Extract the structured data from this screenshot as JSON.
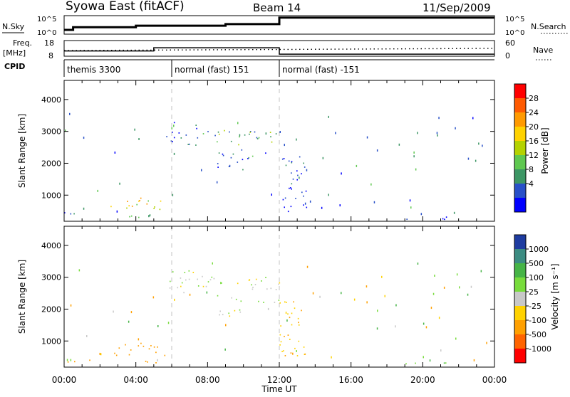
{
  "header": {
    "station": "Syowa East (fitACF)",
    "beam": "Beam 14",
    "date": "11/Sep/2009"
  },
  "top_panel": {
    "left_label": "N.Sky",
    "right_label": "N.Search",
    "left_ticks": [
      "10^5",
      "10^0"
    ],
    "right_ticks": [
      "10^5",
      "10^0"
    ],
    "nsky_steps": [
      {
        "x": 0.0,
        "v": 0.18
      },
      {
        "x": 0.5,
        "v": 0.35
      },
      {
        "x": 4.0,
        "v": 0.45
      },
      {
        "x": 9.0,
        "v": 0.55
      },
      {
        "x": 12.0,
        "v": 0.97
      },
      {
        "x": 24.0,
        "v": 0.97
      }
    ]
  },
  "freq_panel": {
    "left_label_1": "Freq.",
    "left_label_2": "[MHz]",
    "right_label": "Nave",
    "left_ticks": [
      "18",
      "8"
    ],
    "right_ticks": [
      "60",
      "0"
    ],
    "freq_steps": [
      {
        "x": 0.0,
        "v": 0.3
      },
      {
        "x": 5.0,
        "v": 0.55
      },
      {
        "x": 12.0,
        "v": 0.05
      },
      {
        "x": 24.0,
        "v": 0.05
      }
    ]
  },
  "cpid": {
    "label": "CPID",
    "segments": [
      {
        "start": 0,
        "end": 6,
        "name": "themis 3300"
      },
      {
        "start": 6,
        "end": 12,
        "name": "normal (fast) 151"
      },
      {
        "start": 12,
        "end": 24,
        "name": "normal (fast) -151"
      }
    ]
  },
  "power_panel": {
    "ylabel": "Slant Range [km]",
    "cbar_label": "Power [dB]",
    "cbar_ticks": [
      "28",
      "24",
      "20",
      "16",
      "12",
      "8",
      "4"
    ],
    "cbar_colors": [
      "#ff0000",
      "#ff5a00",
      "#ff9a00",
      "#ffd200",
      "#b4d200",
      "#5fc850",
      "#3c9664",
      "#2850c8",
      "#0000ff"
    ]
  },
  "velocity_panel": {
    "ylabel": "Slant Range [km]",
    "cbar_label": "Velocity [m s⁻¹]",
    "cbar_ticks": [
      "1000",
      "500",
      "100",
      "25",
      "-25",
      "-100",
      "-500",
      "-1000"
    ],
    "cbar_colors": [
      "#1e3ca0",
      "#3c8c82",
      "#46b446",
      "#78dc3c",
      "#c8c8c8",
      "#ffd200",
      "#ffa000",
      "#ff6400",
      "#ff0000"
    ]
  },
  "axes": {
    "xlabel": "Time UT",
    "xticks": [
      "00:00",
      "04:00",
      "08:00",
      "12:00",
      "16:00",
      "20:00",
      "00:00"
    ],
    "yticks": [
      "1000",
      "2000",
      "3000",
      "4000"
    ]
  },
  "chart_data": {
    "type": "heatmap",
    "title": "Syowa East (fitACF)",
    "subtitle": "Beam 14",
    "date": "11/Sep/2009",
    "xlabel": "Time UT",
    "ylabel": "Slant Range [km]",
    "xlim": [
      0,
      24
    ],
    "ylim": [
      180,
      4600
    ],
    "x_ticks": [
      0,
      4,
      8,
      12,
      16,
      20,
      24
    ],
    "y_ticks": [
      1000,
      2000,
      3000,
      4000
    ],
    "panels": [
      {
        "name": "Power [dB]",
        "scale_ticks": [
          4,
          8,
          12,
          16,
          20,
          24,
          28
        ]
      },
      {
        "name": "Velocity [m s-1]",
        "scale_ticks": [
          -1000,
          -500,
          -100,
          -25,
          25,
          100,
          500,
          1000
        ]
      }
    ],
    "regions": [
      {
        "t0": 0.0,
        "t1": 1.6,
        "r0": 300,
        "r1": 480,
        "power": 6,
        "vel": -300
      },
      {
        "t0": 2.4,
        "t1": 5.6,
        "r0": 550,
        "r1": 960,
        "power": 18,
        "vel": -250
      },
      {
        "t0": 3.0,
        "t1": 5.2,
        "r0": 300,
        "r1": 420,
        "power": 14,
        "vel": -120
      },
      {
        "t0": 5.6,
        "t1": 6.0,
        "r0": 2400,
        "r1": 2900,
        "power": 6,
        "vel": 20
      },
      {
        "t0": 6.0,
        "t1": 7.5,
        "r0": 2500,
        "r1": 3300,
        "power": 6,
        "vel": 10
      },
      {
        "t0": 7.5,
        "t1": 12.0,
        "r0": 2600,
        "r1": 3050,
        "power": 12,
        "vel": 15
      },
      {
        "t0": 8.5,
        "t1": 10.0,
        "r0": 1800,
        "r1": 2500,
        "power": 6,
        "vel": 5
      },
      {
        "t0": 10.0,
        "t1": 12.0,
        "r0": 2150,
        "r1": 2350,
        "power": 8,
        "vel": 20
      },
      {
        "t0": 12.0,
        "t1": 13.5,
        "r0": 500,
        "r1": 2300,
        "power": 4,
        "vel": -80
      },
      {
        "t0": 17.5,
        "t1": 21.5,
        "r0": 260,
        "r1": 360,
        "power": 6,
        "vel": 120
      }
    ]
  }
}
